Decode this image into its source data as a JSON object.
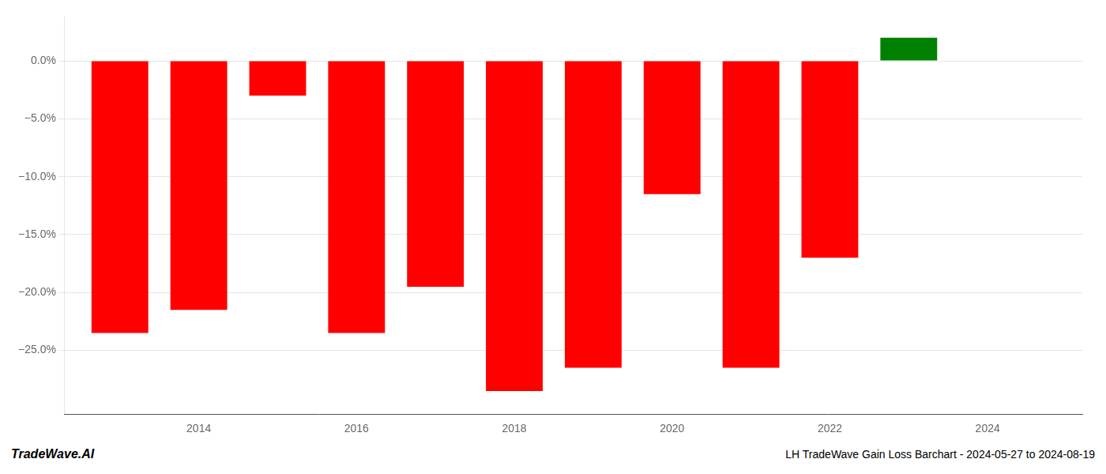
{
  "chart_data": {
    "type": "bar",
    "x": [
      2013,
      2014,
      2015,
      2016,
      2017,
      2018,
      2019,
      2020,
      2021,
      2022,
      2023
    ],
    "values": [
      -0.235,
      -0.215,
      -0.03,
      -0.235,
      -0.195,
      -0.285,
      -0.265,
      -0.115,
      -0.265,
      -0.17,
      0.02
    ],
    "colors": [
      "#ff0000",
      "#ff0000",
      "#ff0000",
      "#ff0000",
      "#ff0000",
      "#ff0000",
      "#ff0000",
      "#ff0000",
      "#ff0000",
      "#ff0000",
      "#008000"
    ],
    "xlim": [
      2012.3,
      2025.2
    ],
    "xticks": [
      2014,
      2016,
      2018,
      2020,
      2022,
      2024
    ],
    "ylim": [
      -0.305,
      0.038
    ],
    "yticks": [
      {
        "value": 0.0,
        "label": "0.0%"
      },
      {
        "value": -0.05,
        "label": "−5.0%"
      },
      {
        "value": -0.1,
        "label": "−10.0%"
      },
      {
        "value": -0.15,
        "label": "−15.0%"
      },
      {
        "value": -0.2,
        "label": "−20.0%"
      },
      {
        "value": -0.25,
        "label": "−25.0%"
      }
    ],
    "grid": true,
    "annotations": [
      "TradeWave.AI",
      "LH TradeWave Gain Loss Barchart - 2024-05-27 to 2024-08-19"
    ]
  }
}
